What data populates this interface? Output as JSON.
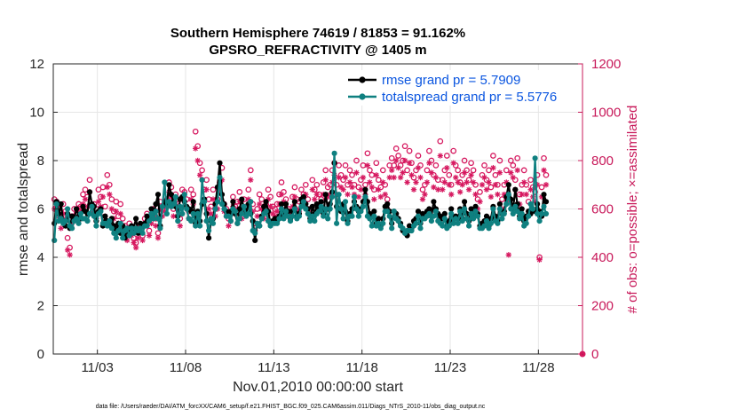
{
  "colors": {
    "rmse": "#000000",
    "spread": "#0f8080",
    "obs": "#d6185f",
    "legend_text": "#0b56e0",
    "grid": "#e6e6e6"
  },
  "chart_data": {
    "type": "line",
    "title_line1": "Southern Hemisphere 74619 / 81853 = 91.162%",
    "title_line2": "GPSRO_REFRACTIVITY @ 1405 m",
    "xlabel": "Nov.01,2010 00:00:00 start",
    "ylabel_left": "rmse and totalspread",
    "ylabel_right": "# of obs: o=possible; ×=assimilated",
    "footnote": "data file: /Users/raeder/DAI/ATM_forcXX/CAM6_setup/f.e21.FHIST_BGC.f09_025.CAM6assim.011/Diags_NTrS_2010-11/obs_diag_output.nc",
    "xlim": [
      0,
      30
    ],
    "ylim_left": [
      0,
      12
    ],
    "ylim_right": [
      0,
      1200
    ],
    "xticks": [
      {
        "day": 2.5,
        "label": "11/03"
      },
      {
        "day": 7.5,
        "label": "11/08"
      },
      {
        "day": 12.5,
        "label": "11/13"
      },
      {
        "day": 17.5,
        "label": "11/18"
      },
      {
        "day": 22.5,
        "label": "11/23"
      },
      {
        "day": 27.5,
        "label": "11/28"
      }
    ],
    "yticks_left": [
      {
        "v": 0,
        "label": "0"
      },
      {
        "v": 2,
        "label": "2"
      },
      {
        "v": 4,
        "label": "4"
      },
      {
        "v": 6,
        "label": "6"
      },
      {
        "v": 8,
        "label": "8"
      },
      {
        "v": 10,
        "label": "10"
      },
      {
        "v": 12,
        "label": "12"
      }
    ],
    "yticks_right": [
      {
        "v": 0,
        "label": "0"
      },
      {
        "v": 200,
        "label": "200"
      },
      {
        "v": 400,
        "label": "400"
      },
      {
        "v": 600,
        "label": "600"
      },
      {
        "v": 800,
        "label": "800"
      },
      {
        "v": 1000,
        "label": "1000"
      },
      {
        "v": 1200,
        "label": "1200"
      }
    ],
    "legend": [
      {
        "name": "rmse grand pr = 5.7909",
        "series": "rmse"
      },
      {
        "name": "totalspread grand pr = 5.5776",
        "series": "spread"
      }
    ],
    "samples_per_day": 8,
    "x_start": 0.0625,
    "series": [
      {
        "name": "rmse",
        "values": [
          5.4,
          6.3,
          5.8,
          6.2,
          5.5,
          5.3,
          5.8,
          5.2,
          5.7,
          5.6,
          6.0,
          5.7,
          5.6,
          6.1,
          5.9,
          5.8,
          6.7,
          6.2,
          6.1,
          5.5,
          5.9,
          6.0,
          5.3,
          5.7,
          5.5,
          5.4,
          5.6,
          5.3,
          5.1,
          5.4,
          5.0,
          5.3,
          4.8,
          5.2,
          5.0,
          5.3,
          5.2,
          5.6,
          5.0,
          5.4,
          5.3,
          5.4,
          5.7,
          5.6,
          6.0,
          5.8,
          6.2,
          6.6,
          5.3,
          6.1,
          6.3,
          6.2,
          7.0,
          6.6,
          6.3,
          6.1,
          5.7,
          6.4,
          6.5,
          6.3,
          6.1,
          6.0,
          5.9,
          6.3,
          5.4,
          5.9,
          5.5,
          6.2,
          6.4,
          5.8,
          4.8,
          5.5,
          5.6,
          6.2,
          6.9,
          7.9,
          6.6,
          6.2,
          5.9,
          5.8,
          5.9,
          6.3,
          5.8,
          5.4,
          6.0,
          6.4,
          6.0,
          5.8,
          6.2,
          5.8,
          5.5,
          4.7,
          5.4,
          5.3,
          5.7,
          6.1,
          6.3,
          5.9,
          5.4,
          5.5,
          5.6,
          5.5,
          5.7,
          6.2,
          5.8,
          6.2,
          5.9,
          5.6,
          5.9,
          6.3,
          5.7,
          5.8,
          6.4,
          6.5,
          6.2,
          6.0,
          5.6,
          6.1,
          5.8,
          6.2,
          6.0,
          6.3,
          5.8,
          6.6,
          6.0,
          6.2,
          6.7,
          7.9,
          6.1,
          6.0,
          5.9,
          6.2,
          5.9,
          5.5,
          5.8,
          6.0,
          6.3,
          6.1,
          5.9,
          6.0,
          6.3,
          6.8,
          6.3,
          5.8,
          5.7,
          5.9,
          5.4,
          5.6,
          5.3,
          5.6,
          6.1,
          6.2,
          5.9,
          5.4,
          5.9,
          5.8,
          5.6,
          5.4,
          5.1,
          5.0,
          4.9,
          5.3,
          5.2,
          5.5,
          5.6,
          5.9,
          5.4,
          5.8,
          5.7,
          5.9,
          6.0,
          5.7,
          6.3,
          6.0,
          5.8,
          5.7,
          5.6,
          5.8,
          5.3,
          5.5,
          6.0,
          5.6,
          5.7,
          5.6,
          6.0,
          5.6,
          6.3,
          5.8,
          5.5,
          6.0,
          5.7,
          6.1,
          5.8,
          5.3,
          5.4,
          5.5,
          5.7,
          5.3,
          5.6,
          6.1,
          5.7,
          5.5,
          6.2,
          5.8,
          5.9,
          6.5,
          7.0,
          6.4,
          6.0,
          6.8,
          6.2,
          5.7,
          6.0,
          5.5,
          5.7,
          5.9,
          5.8,
          6.0,
          5.9,
          6.2,
          5.9,
          5.7,
          6.6,
          6.3
        ]
      },
      {
        "name": "totalspread",
        "values": [
          4.7,
          6.2,
          5.5,
          5.6,
          5.4,
          5.5,
          6.0,
          5.3,
          5.2,
          5.5,
          5.6,
          5.4,
          5.8,
          5.6,
          5.6,
          5.5,
          5.8,
          6.1,
          5.7,
          5.3,
          5.8,
          5.9,
          5.4,
          5.4,
          5.3,
          5.5,
          5.2,
          5.0,
          4.8,
          5.1,
          5.4,
          4.8,
          5.1,
          5.2,
          4.9,
          5.2,
          5.0,
          5.2,
          5.1,
          5.2,
          5.0,
          5.3,
          5.3,
          5.5,
          5.8,
          5.6,
          5.9,
          5.6,
          5.2,
          6.1,
          7.1,
          5.8,
          6.3,
          6.1,
          6.2,
          6.5,
          5.5,
          6.1,
          5.8,
          6.6,
          6.0,
          5.6,
          5.5,
          5.8,
          5.3,
          5.8,
          5.3,
          7.2,
          6.3,
          5.5,
          5.1,
          5.6,
          5.4,
          6.0,
          6.3,
          7.3,
          6.2,
          6.0,
          5.7,
          5.7,
          5.5,
          6.0,
          5.9,
          5.4,
          5.6,
          5.8,
          6.1,
          5.7,
          5.8,
          6.3,
          5.1,
          5.0,
          5.4,
          5.3,
          5.6,
          5.8,
          5.9,
          5.5,
          5.3,
          5.4,
          5.4,
          5.4,
          5.6,
          6.0,
          5.6,
          5.9,
          5.7,
          5.5,
          5.7,
          6.0,
          5.6,
          5.7,
          6.1,
          6.3,
          6.0,
          5.8,
          5.5,
          5.7,
          5.5,
          5.8,
          5.9,
          6.1,
          5.7,
          6.0,
          5.6,
          6.0,
          6.5,
          8.3,
          5.4,
          6.6,
          6.0,
          5.6,
          6.3,
          5.4,
          5.7,
          5.7,
          6.5,
          6.0,
          5.7,
          5.9,
          6.1,
          6.5,
          5.7,
          5.6,
          5.3,
          5.7,
          5.3,
          5.4,
          5.2,
          5.4,
          5.9,
          5.9,
          5.7,
          5.2,
          5.9,
          5.6,
          5.5,
          5.3,
          5.2,
          5.0,
          5.1,
          5.1,
          5.1,
          5.3,
          5.4,
          5.7,
          5.2,
          5.6,
          5.6,
          5.7,
          5.8,
          5.5,
          5.7,
          5.9,
          5.5,
          5.4,
          5.3,
          5.6,
          5.2,
          5.3,
          5.8,
          5.4,
          5.6,
          5.4,
          5.9,
          5.5,
          6.0,
          5.6,
          5.3,
          5.8,
          5.6,
          5.9,
          5.7,
          5.2,
          5.2,
          5.3,
          5.5,
          5.2,
          5.4,
          6.0,
          5.5,
          5.4,
          6.0,
          5.6,
          5.8,
          6.2,
          6.6,
          6.0,
          5.8,
          6.1,
          5.9,
          5.6,
          5.8,
          5.3,
          5.4,
          5.7,
          6.2,
          6.0,
          8.1,
          5.8,
          5.5,
          5.8,
          6.1,
          5.8
        ]
      },
      {
        "name": "possible",
        "values": [
          640,
          630,
          600,
          560,
          620,
          590,
          480,
          440,
          570,
          600,
          580,
          620,
          610,
          660,
          680,
          650,
          720,
          610,
          620,
          600,
          680,
          650,
          690,
          610,
          740,
          700,
          640,
          590,
          630,
          570,
          620,
          560,
          530,
          500,
          540,
          520,
          480,
          460,
          510,
          530,
          490,
          560,
          580,
          510,
          570,
          600,
          560,
          500,
          630,
          600,
          620,
          640,
          710,
          690,
          600,
          660,
          640,
          560,
          680,
          670,
          640,
          590,
          680,
          660,
          920,
          860,
          790,
          760,
          680,
          720,
          640,
          610,
          680,
          600,
          640,
          710,
          770,
          620,
          600,
          560,
          580,
          650,
          610,
          630,
          670,
          590,
          640,
          610,
          680,
          760,
          620,
          540,
          600,
          660,
          640,
          590,
          620,
          680,
          650,
          610,
          600,
          620,
          660,
          710,
          670,
          640,
          600,
          590,
          650,
          690,
          640,
          630,
          680,
          660,
          700,
          640,
          600,
          720,
          680,
          700,
          660,
          640,
          710,
          760,
          690,
          700,
          760,
          790,
          700,
          780,
          740,
          720,
          780,
          700,
          760,
          740,
          700,
          800,
          690,
          720,
          780,
          700,
          830,
          760,
          740,
          680,
          790,
          720,
          690,
          760,
          700,
          640,
          780,
          810,
          780,
          850,
          820,
          780,
          800,
          860,
          760,
          840,
          790,
          730,
          760,
          820,
          780,
          680,
          700,
          760,
          840,
          800,
          740,
          780,
          720,
          880,
          720,
          760,
          820,
          740,
          700,
          840,
          780,
          760,
          710,
          740,
          800,
          760,
          720,
          790,
          760,
          700,
          640,
          670,
          740,
          780,
          720,
          760,
          690,
          820,
          740,
          700,
          800,
          640,
          700,
          760,
          640,
          800,
          780,
          720,
          810,
          660,
          700,
          760,
          700,
          630,
          720,
          690,
          670,
          740,
          400,
          690,
          810,
          740
        ]
      },
      {
        "name": "assimilated",
        "values": [
          600,
          610,
          570,
          520,
          580,
          560,
          430,
          410,
          540,
          560,
          560,
          600,
          590,
          620,
          640,
          610,
          670,
          580,
          580,
          560,
          630,
          610,
          650,
          570,
          690,
          660,
          600,
          560,
          590,
          540,
          580,
          530,
          500,
          470,
          510,
          490,
          460,
          440,
          480,
          500,
          470,
          530,
          550,
          490,
          540,
          570,
          530,
          480,
          600,
          570,
          590,
          610,
          670,
          650,
          570,
          620,
          600,
          530,
          640,
          630,
          600,
          560,
          640,
          620,
          850,
          800,
          740,
          720,
          640,
          680,
          600,
          580,
          640,
          570,
          600,
          670,
          720,
          590,
          570,
          530,
          550,
          610,
          580,
          600,
          630,
          560,
          600,
          580,
          640,
          720,
          590,
          510,
          570,
          620,
          600,
          560,
          590,
          640,
          610,
          580,
          570,
          590,
          620,
          660,
          630,
          600,
          570,
          560,
          610,
          650,
          600,
          590,
          640,
          620,
          660,
          600,
          570,
          680,
          640,
          660,
          620,
          600,
          660,
          720,
          650,
          660,
          710,
          740,
          660,
          730,
          690,
          680,
          730,
          660,
          710,
          690,
          660,
          750,
          650,
          680,
          730,
          660,
          780,
          710,
          690,
          640,
          740,
          680,
          650,
          710,
          660,
          600,
          730,
          760,
          730,
          800,
          770,
          730,
          750,
          800,
          710,
          790,
          740,
          680,
          710,
          770,
          730,
          640,
          660,
          710,
          790,
          750,
          690,
          730,
          680,
          820,
          680,
          710,
          770,
          700,
          660,
          790,
          730,
          710,
          670,
          700,
          750,
          710,
          680,
          740,
          710,
          660,
          600,
          630,
          700,
          730,
          680,
          710,
          650,
          770,
          700,
          660,
          750,
          600,
          660,
          710,
          410,
          750,
          730,
          680,
          760,
          620,
          660,
          710,
          660,
          590,
          680,
          650,
          630,
          700,
          390,
          650,
          760,
          700
        ]
      }
    ]
  }
}
